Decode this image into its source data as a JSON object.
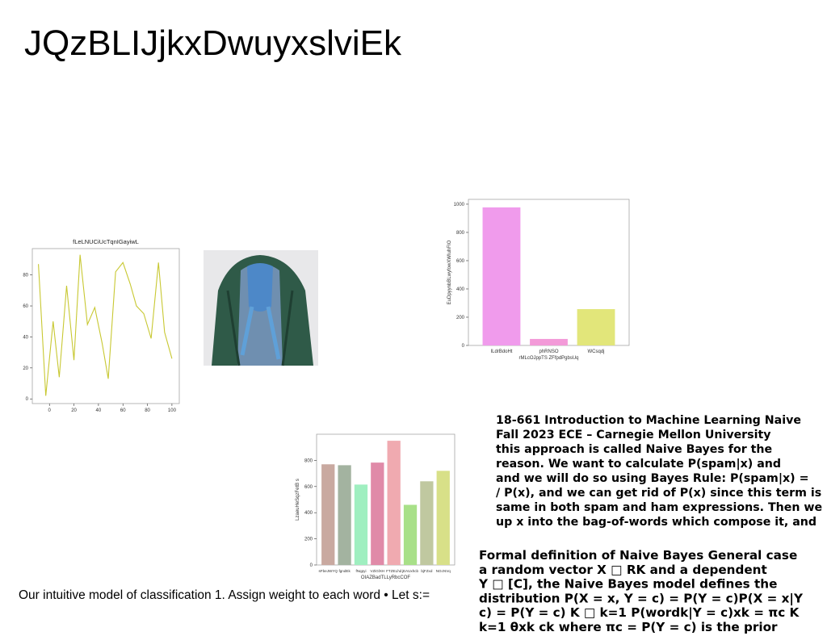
{
  "title": "JQzBLIJjkxDwuyxslviEk",
  "caption": "Our intuitive model of classification 1. Assign weight to each word • Let s:=",
  "text_block_1": {
    "lines": [
      "18-661 Introduction to Machine Learning Naive",
      "Fall 2023 ECE – Carnegie Mellon University",
      "this approach is called Naive Bayes for the",
      "reason. We want to calculate P(spam|x) and",
      "and we will do so using Bayes Rule: P(spam|x) =",
      "/ P(x), and we can get rid of P(x) since this term is",
      "same in both spam and ham expressions. Then we",
      "up x into the bag-of-words which compose it, and"
    ]
  },
  "text_block_2": {
    "lines": [
      "Formal definition of Naive Bayes General case",
      "a random vector X □ RK and a dependent",
      "Y □ [C], the Naive Bayes model defines the",
      "distribution P(X = x, Y = c) = P(Y = c)P(X = x|Y",
      "c) = P(Y = c) K □ k=1 P(wordk|Y = c)xk = πc K",
      "k=1 θxk ck where πc = P(Y = c) is the prior"
    ]
  },
  "chart_data": [
    {
      "type": "line",
      "title": "fLeLNUCiUcTqnIGayiwL",
      "color": "#c8c832",
      "x": [
        -9,
        -3,
        3,
        8,
        14,
        20,
        25,
        31,
        37,
        43,
        48,
        54,
        60,
        66,
        71,
        77,
        83,
        89,
        94,
        100
      ],
      "values": [
        87,
        2,
        50,
        14,
        73,
        25,
        93,
        48,
        59,
        36,
        13,
        82,
        88,
        74,
        60,
        55,
        39,
        88,
        43,
        26
      ],
      "xlim": [
        -14,
        106
      ],
      "ylim": [
        -3,
        97
      ],
      "xticks": [
        0,
        20,
        40,
        60,
        80,
        100
      ],
      "yticks": [
        0,
        20,
        40,
        60,
        80
      ]
    },
    {
      "type": "bar",
      "xlabel": "rMLcOJppTS ZFfpdPgbsUq",
      "ylabel": "EuDpyynbBLwyfowXWIuhFIO",
      "categories": [
        "ILdrBdoHt",
        "phRNSO",
        "WCsqdj"
      ],
      "values": [
        977,
        46,
        257
      ],
      "colors": [
        "#f09bec",
        "#f39ad8",
        "#e2e67a"
      ],
      "ylim": [
        0,
        1034
      ],
      "yticks": [
        0,
        200,
        400,
        600,
        800,
        1000
      ]
    },
    {
      "type": "bar",
      "xlabel": "OIAZBadTLLyRbcCOF",
      "ylabel": "LzaeuHeSqzFetB s",
      "categories": [
        "sFbeJWYQ",
        "fgndEk",
        "fNqpyi",
        "VZiGlXH",
        "FTZELhd",
        "jEAUxhcb",
        "bjFZxd",
        "NGcNVq"
      ],
      "values": [
        770,
        763,
        615,
        783,
        950,
        460,
        640,
        720
      ],
      "colors": [
        "#c9a9a0",
        "#a3b3a0",
        "#9fefc0",
        "#e08aa8",
        "#f0aab0",
        "#a8e088",
        "#c0c8a0",
        "#d8e088"
      ],
      "ylim": [
        0,
        1000
      ],
      "yticks": [
        0,
        200,
        400,
        600,
        800
      ]
    }
  ]
}
